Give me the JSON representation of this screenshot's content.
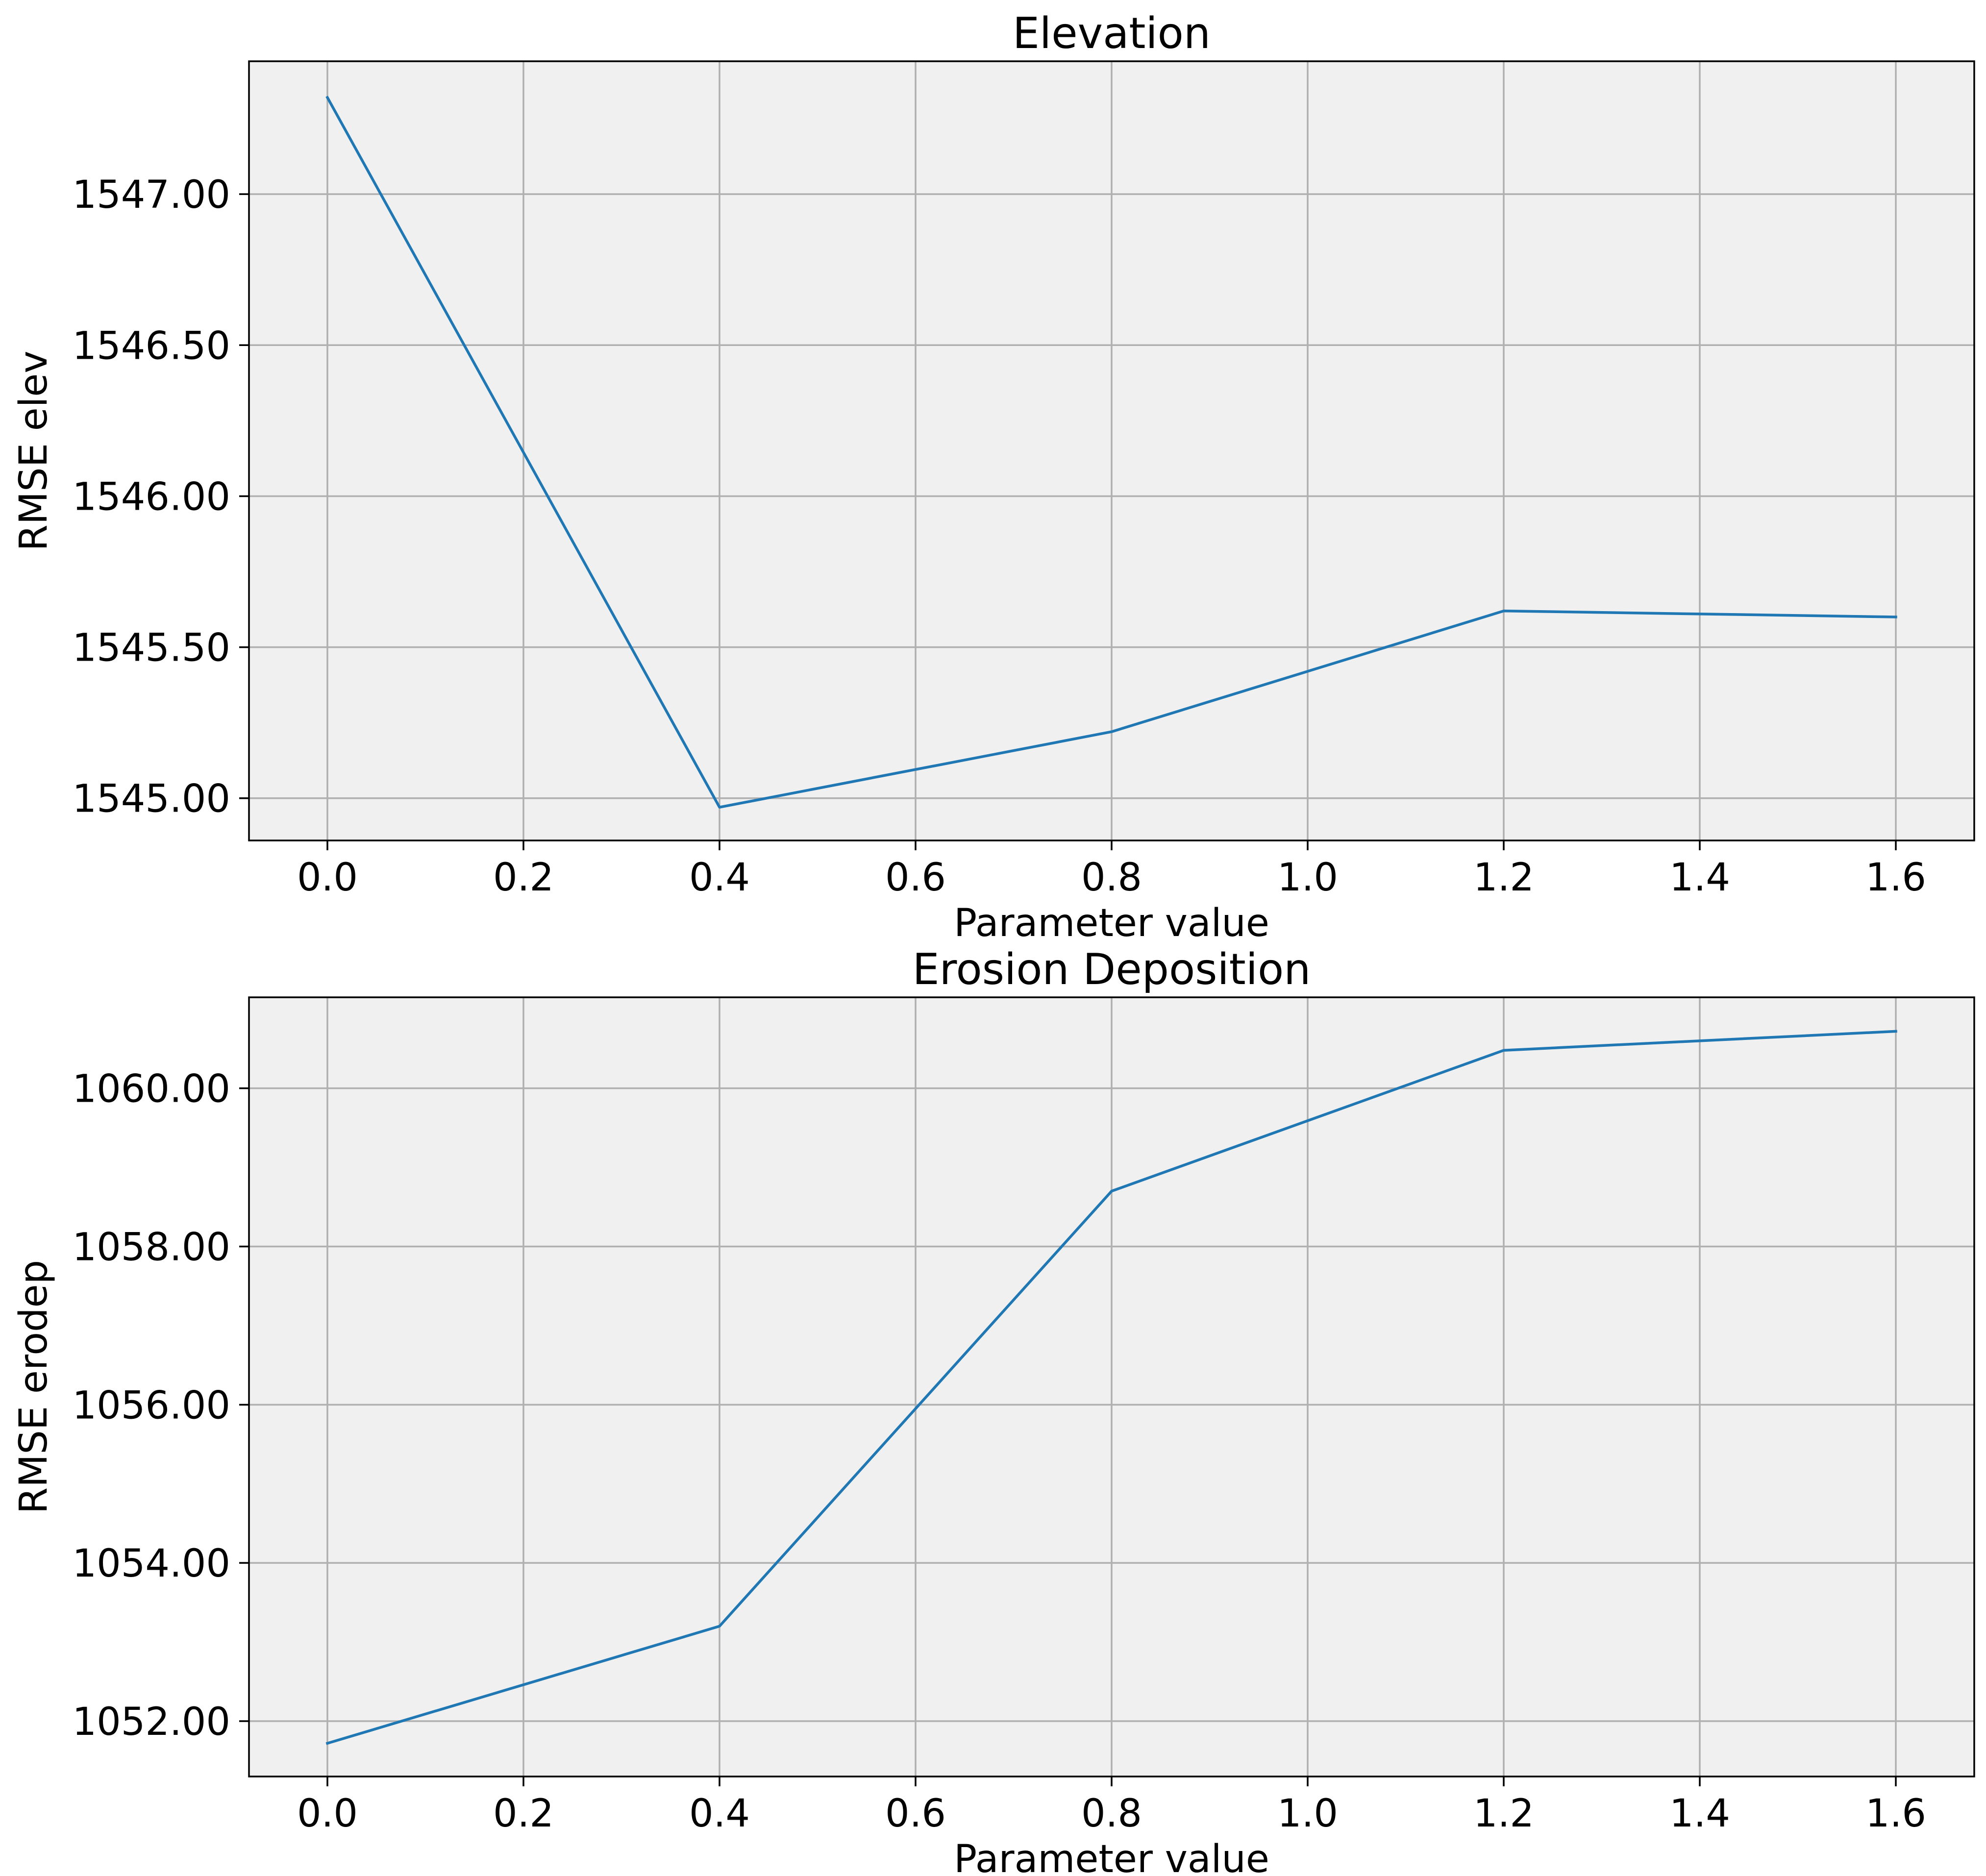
{
  "style": {
    "plot_background": "#f0f0f0",
    "series_color": "#1f77b4",
    "grid_color": "#b0b0b0"
  },
  "chart_data": [
    {
      "type": "line",
      "title": "Elevation",
      "xlabel": "Parameter value",
      "ylabel": "RMSE elev",
      "grid": true,
      "xlim": [
        -0.08,
        1.68
      ],
      "ylim": [
        1544.86,
        1547.44
      ],
      "x_ticks": [
        0.0,
        0.2,
        0.4,
        0.6,
        0.8,
        1.0,
        1.2,
        1.4,
        1.6
      ],
      "x_tick_labels": [
        "0.0",
        "0.2",
        "0.4",
        "0.6",
        "0.8",
        "1.0",
        "1.2",
        "1.4",
        "1.6"
      ],
      "y_ticks": [
        1545.0,
        1545.5,
        1546.0,
        1546.5,
        1547.0
      ],
      "y_tick_labels": [
        "1545.00",
        "1545.50",
        "1546.00",
        "1546.50",
        "1547.00"
      ],
      "series": [
        {
          "x": [
            0.0,
            0.4,
            0.8,
            1.2,
            1.6
          ],
          "y": [
            1547.32,
            1544.97,
            1545.22,
            1545.62,
            1545.6
          ]
        }
      ]
    },
    {
      "type": "line",
      "title": "Erosion Deposition",
      "xlabel": "Parameter value",
      "ylabel": "RMSE erodep",
      "grid": true,
      "xlim": [
        -0.08,
        1.68
      ],
      "ylim": [
        1051.3,
        1061.15
      ],
      "x_ticks": [
        0.0,
        0.2,
        0.4,
        0.6,
        0.8,
        1.0,
        1.2,
        1.4,
        1.6
      ],
      "x_tick_labels": [
        "0.0",
        "0.2",
        "0.4",
        "0.6",
        "0.8",
        "1.0",
        "1.2",
        "1.4",
        "1.6"
      ],
      "y_ticks": [
        1052.0,
        1054.0,
        1056.0,
        1058.0,
        1060.0
      ],
      "y_tick_labels": [
        "1052.00",
        "1054.00",
        "1056.00",
        "1058.00",
        "1060.00"
      ],
      "series": [
        {
          "x": [
            0.0,
            0.4,
            0.8,
            1.2,
            1.6
          ],
          "y": [
            1051.72,
            1053.2,
            1058.7,
            1060.48,
            1060.72
          ]
        }
      ]
    }
  ]
}
